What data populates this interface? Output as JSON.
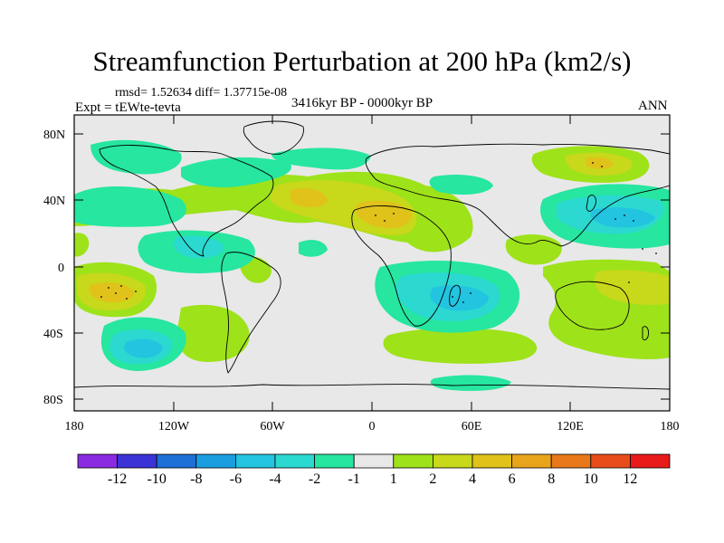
{
  "figure": {
    "title": "Streamfunction Perturbation at 200 hPa (km2/s)",
    "stats": "rmsd= 1.52634 diff= 1.37715e-08",
    "experiment": "Expt = tEWte-tevta",
    "period": "3416kyr BP - 0000kyr BP",
    "season": "ANN"
  },
  "axes": {
    "lat_labels": [
      "80N",
      "40N",
      "0",
      "40S",
      "80S"
    ],
    "lon_labels": [
      "180",
      "120W",
      "60W",
      "0",
      "60E",
      "120E",
      "180"
    ]
  },
  "colorbar": {
    "colors": [
      "#8a2be2",
      "#3c33d6",
      "#1e6fd6",
      "#1a9ee0",
      "#22c4e0",
      "#2bd9d0",
      "#26e6a0",
      "#e8e8e8",
      "#9ee21a",
      "#c8d81a",
      "#e0c21a",
      "#e8a41a",
      "#e8781a",
      "#e84c1a",
      "#e81a1a"
    ],
    "labels": [
      "-12",
      "-10",
      "-8",
      "-6",
      "-4",
      "-2",
      "-1",
      "1",
      "2",
      "4",
      "6",
      "8",
      "10",
      "12"
    ]
  },
  "colors": {
    "ocean_background": "#e8e8e8",
    "coastline": "#000000"
  }
}
